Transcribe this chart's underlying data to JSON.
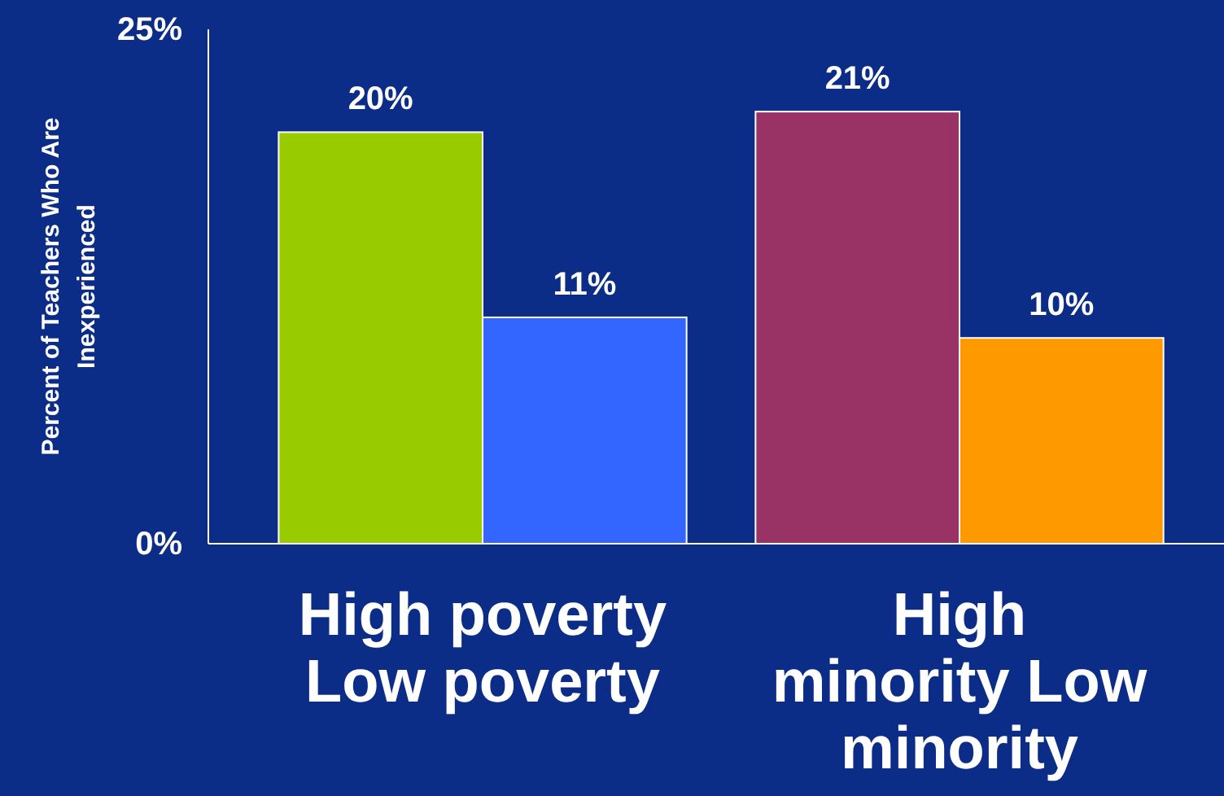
{
  "chart_data": {
    "type": "bar",
    "ylabel": "Percent of Teachers Who Are Inexperienced",
    "categories": [
      "High poverty Low poverty",
      "High minority Low minority"
    ],
    "series": [
      {
        "values": [
          20,
          21
        ],
        "colors": [
          "#99cc00",
          "#993366"
        ]
      },
      {
        "values": [
          11,
          10
        ],
        "colors": [
          "#3366ff",
          "#ff9900"
        ]
      }
    ],
    "ylim": [
      0,
      25
    ],
    "yticks": [
      {
        "value": 0,
        "label": "0%"
      },
      {
        "value": 25,
        "label": "25%"
      }
    ],
    "value_labels": [
      [
        "20%",
        "21%"
      ],
      [
        "11%",
        "10%"
      ]
    ],
    "grid": false
  }
}
